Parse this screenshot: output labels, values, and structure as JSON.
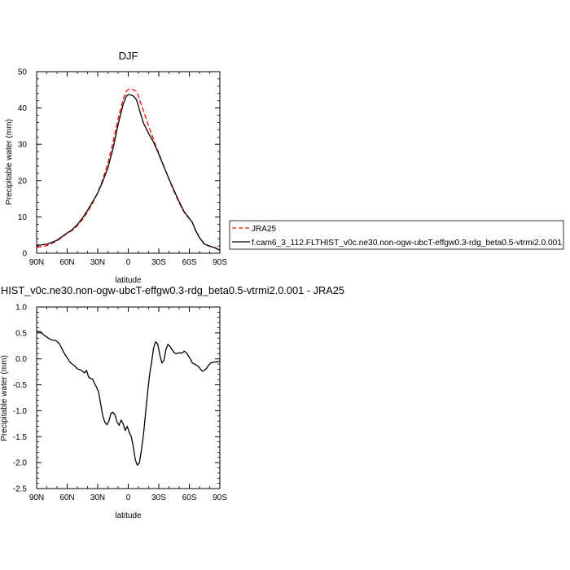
{
  "chart_data": [
    {
      "type": "line",
      "title": "DJF",
      "xlabel": "latitude",
      "ylabel": "Precipitable water (mm)",
      "xlim": [
        90,
        -90
      ],
      "ylim": [
        0,
        50
      ],
      "xticks": [
        90,
        60,
        30,
        0,
        -30,
        -60,
        -90
      ],
      "xtick_labels": [
        "90N",
        "60N",
        "30N",
        "0",
        "30S",
        "60S",
        "90S"
      ],
      "yticks": [
        0,
        10,
        20,
        30,
        40,
        50
      ],
      "ytick_labels": [
        "0",
        "10",
        "20",
        "30",
        "40",
        "50"
      ],
      "legend_position": "right, outside plot",
      "series": [
        {
          "name": "JRA25",
          "color": "#ff0000",
          "dash": "dashed",
          "x": [
            90,
            85,
            80,
            75,
            70,
            65,
            60,
            55,
            50,
            45,
            40,
            35,
            30,
            25,
            20,
            15,
            10,
            5,
            2,
            0,
            -2,
            -5,
            -8,
            -10,
            -12,
            -15,
            -20,
            -25,
            -30,
            -35,
            -40,
            -45,
            -50,
            -55,
            -60,
            -63,
            -66,
            -70,
            -75,
            -80,
            -85,
            -90
          ],
          "y": [
            1.7,
            1.8,
            2.1,
            2.7,
            3.4,
            4.4,
            5.5,
            6.3,
            7.6,
            9.3,
            11.4,
            13.8,
            16.6,
            20.3,
            24.8,
            30.5,
            37.0,
            42.4,
            44.6,
            45.1,
            45.2,
            45.0,
            44.6,
            43.3,
            41.5,
            39.2,
            35.0,
            31.2,
            27.5,
            24.0,
            20.4,
            17.0,
            13.9,
            11.2,
            9.5,
            8.4,
            6.3,
            4.3,
            2.4,
            1.9,
            1.6,
            0.8
          ]
        },
        {
          "name": "f.cam6_3_112.FLTHIST_v0c.ne30.non-ogw-ubcT-effgw0.3-rdg_beta0.5-vtrmi2.0.001",
          "color": "#000000",
          "dash": "solid",
          "x": [
            90,
            85,
            80,
            75,
            70,
            65,
            60,
            55,
            50,
            45,
            40,
            35,
            30,
            25,
            20,
            15,
            10,
            5,
            2,
            0,
            -2,
            -5,
            -8,
            -10,
            -12,
            -15,
            -20,
            -25,
            -30,
            -35,
            -40,
            -45,
            -50,
            -55,
            -60,
            -63,
            -66,
            -70,
            -75,
            -80,
            -85,
            -90
          ],
          "y": [
            2.2,
            2.3,
            2.5,
            3.0,
            3.6,
            4.6,
            5.6,
            6.5,
            7.9,
            9.7,
            11.8,
            14.2,
            16.6,
            19.8,
            23.5,
            28.8,
            35.4,
            41.0,
            43.2,
            43.7,
            43.6,
            43.3,
            42.3,
            40.5,
            38.5,
            35.8,
            33.0,
            30.5,
            27.3,
            23.8,
            20.5,
            17.3,
            14.2,
            11.4,
            9.6,
            8.5,
            6.4,
            4.3,
            2.5,
            2.0,
            1.5,
            0.8
          ]
        }
      ]
    },
    {
      "type": "line",
      "title": "HIST_v0c.ne30.non-ogw-ubcT-effgw0.3-rdg_beta0.5-vtrmi2.0.001 - JRA25",
      "xlabel": "latitude",
      "ylabel": "Precipitable water (mm)",
      "xlim": [
        90,
        -90
      ],
      "ylim": [
        -2.5,
        1.0
      ],
      "xticks": [
        90,
        60,
        30,
        0,
        -30,
        -60,
        -90
      ],
      "xtick_labels": [
        "90N",
        "60N",
        "30N",
        "0",
        "30S",
        "60S",
        "90S"
      ],
      "yticks": [
        -2.5,
        -2.0,
        -1.5,
        -1.0,
        -0.5,
        0.0,
        0.5,
        1.0
      ],
      "ytick_labels": [
        "-2.5",
        "-2.0",
        "-1.5",
        "-1.0",
        "-0.5",
        "0.0",
        "0.5",
        "1.0"
      ],
      "series": [
        {
          "color": "#000000",
          "dash": "solid",
          "x": [
            90,
            86,
            83,
            80,
            77,
            74,
            71,
            68,
            66,
            64,
            62,
            60,
            57,
            55,
            53,
            51,
            49,
            47,
            45,
            43,
            41,
            39,
            37,
            35,
            33,
            31,
            29,
            27,
            25,
            23,
            21,
            19,
            17,
            15,
            13,
            11,
            9,
            7,
            5,
            3,
            1,
            -1,
            -3,
            -5,
            -7,
            -9,
            -11,
            -13,
            -15,
            -17,
            -19,
            -21,
            -23,
            -25,
            -27,
            -29,
            -31,
            -33,
            -35,
            -37,
            -39,
            -41,
            -43,
            -45,
            -47,
            -49,
            -51,
            -53,
            -55,
            -57,
            -59,
            -61,
            -63,
            -65,
            -67,
            -69,
            -71,
            -73,
            -75,
            -77,
            -79,
            -81,
            -83,
            -85,
            -87,
            -89,
            -90
          ],
          "y": [
            0.53,
            0.52,
            0.46,
            0.42,
            0.38,
            0.36,
            0.35,
            0.3,
            0.23,
            0.15,
            0.08,
            0.02,
            -0.07,
            -0.1,
            -0.13,
            -0.17,
            -0.2,
            -0.21,
            -0.24,
            -0.27,
            -0.22,
            -0.35,
            -0.38,
            -0.39,
            -0.48,
            -0.55,
            -0.65,
            -0.88,
            -1.1,
            -1.22,
            -1.27,
            -1.2,
            -1.05,
            -1.03,
            -1.08,
            -1.22,
            -1.28,
            -1.18,
            -1.25,
            -1.38,
            -1.3,
            -1.42,
            -1.5,
            -1.7,
            -1.95,
            -2.05,
            -2.0,
            -1.75,
            -1.45,
            -1.05,
            -0.65,
            -0.3,
            -0.05,
            0.22,
            0.33,
            0.28,
            0.08,
            -0.08,
            -0.03,
            0.18,
            0.28,
            0.24,
            0.18,
            0.12,
            0.1,
            0.11,
            0.12,
            0.11,
            0.15,
            0.12,
            0.06,
            0.0,
            -0.08,
            -0.1,
            -0.12,
            -0.15,
            -0.2,
            -0.24,
            -0.22,
            -0.18,
            -0.12,
            -0.08,
            -0.07,
            -0.06,
            -0.06,
            -0.05,
            -0.05
          ]
        }
      ]
    }
  ]
}
